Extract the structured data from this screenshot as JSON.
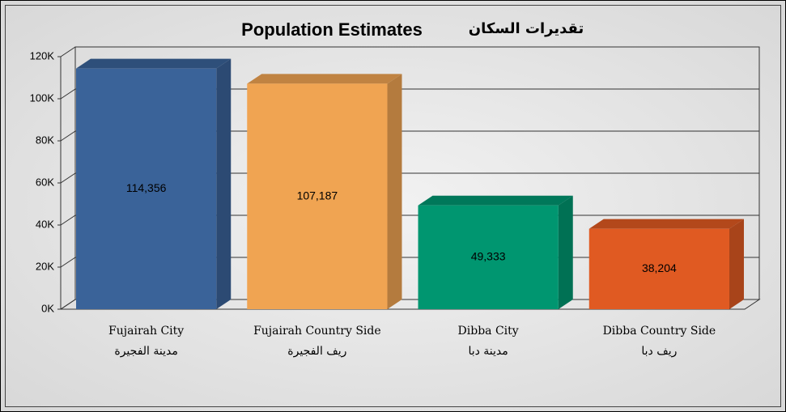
{
  "chart_data": {
    "type": "bar3d",
    "title": "Population Estimates",
    "title_ar": "تقديرات السكان",
    "categories": [
      "Fujairah City",
      "Fujairah Country Side",
      "Dibba  City",
      "Dibba Country Side"
    ],
    "categories_ar": [
      "مدينة الفجيرة",
      "ريف الفجيرة",
      "مدينة دبا",
      "ريف دبا"
    ],
    "values": [
      114356,
      107187,
      49333,
      38204
    ],
    "value_labels": [
      "114,356",
      "107,187",
      "49,333",
      "38,204"
    ],
    "colors": [
      "#3a6399",
      "#f0a452",
      "#009670",
      "#e05a22"
    ],
    "ylim": [
      0,
      120000
    ],
    "yticks": [
      {
        "value": 0,
        "label": "0K"
      },
      {
        "value": 20000,
        "label": "20K"
      },
      {
        "value": 40000,
        "label": "40K"
      },
      {
        "value": 60000,
        "label": "60K"
      },
      {
        "value": 80000,
        "label": "80K"
      },
      {
        "value": 100000,
        "label": "100K"
      },
      {
        "value": 120000,
        "label": "120K"
      }
    ],
    "grid": true
  }
}
